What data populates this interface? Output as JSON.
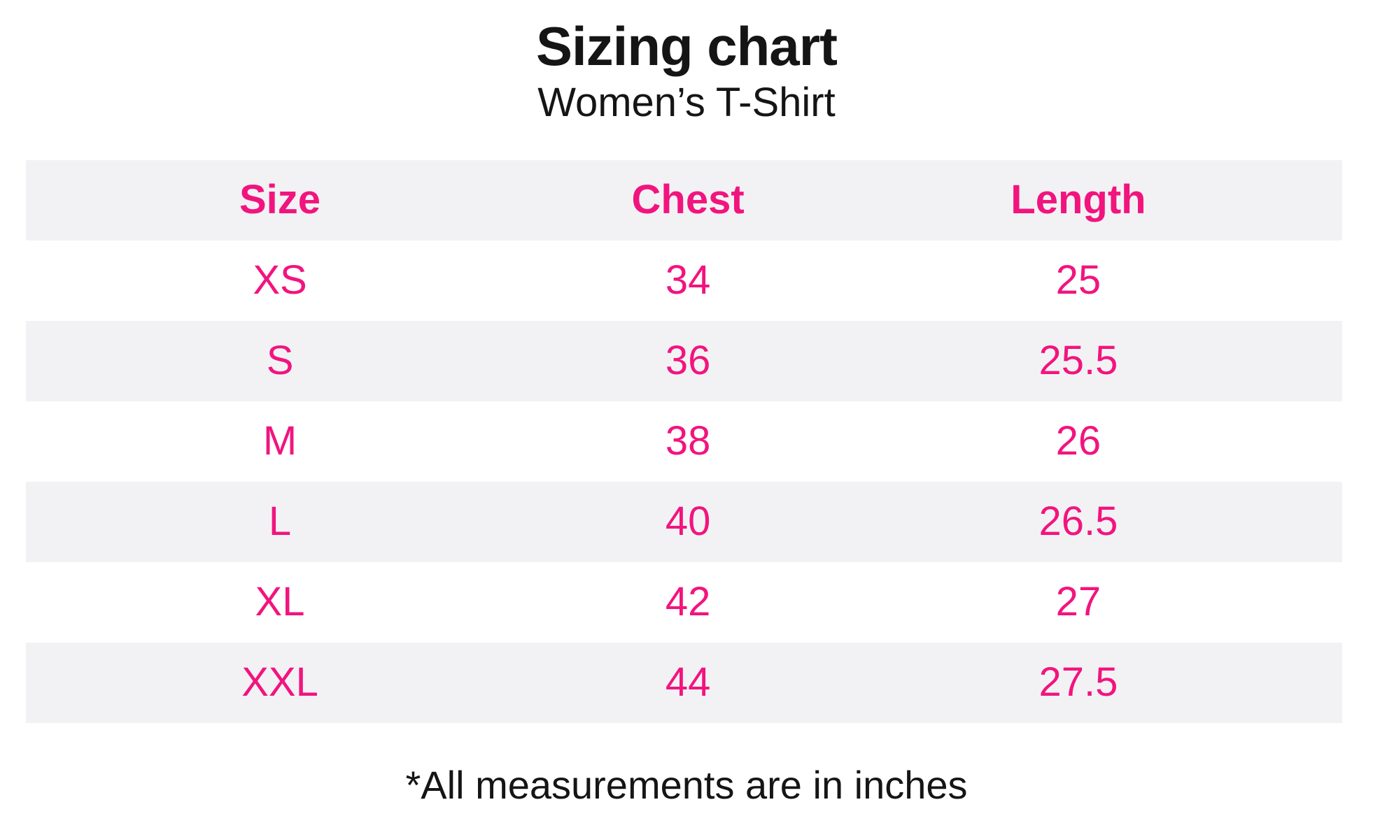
{
  "page": {
    "title": "Sizing chart",
    "subtitle": "Women’s T-Shirt",
    "footnote": "*All measurements are in inches"
  },
  "colors": {
    "accent_pink": "#f2147e",
    "row_stripe_gray": "#f2f2f4",
    "text_black": "#151515",
    "background": "#ffffff"
  },
  "chart_data": {
    "type": "table",
    "title": "Sizing chart",
    "subtitle": "Women’s T-Shirt",
    "columns": [
      "Size",
      "Chest",
      "Length"
    ],
    "rows": [
      [
        "XS",
        "34",
        "25"
      ],
      [
        "S",
        "36",
        "25.5"
      ],
      [
        "M",
        "38",
        "26"
      ],
      [
        "L",
        "40",
        "26.5"
      ],
      [
        "XL",
        "42",
        "27"
      ],
      [
        "XXL",
        "44",
        "27.5"
      ]
    ],
    "units": "inches",
    "footnote": "*All measurements are in inches",
    "layout_hints": {
      "striped_rows": "header and even data rows are light gray",
      "text_alignment": "center"
    }
  }
}
